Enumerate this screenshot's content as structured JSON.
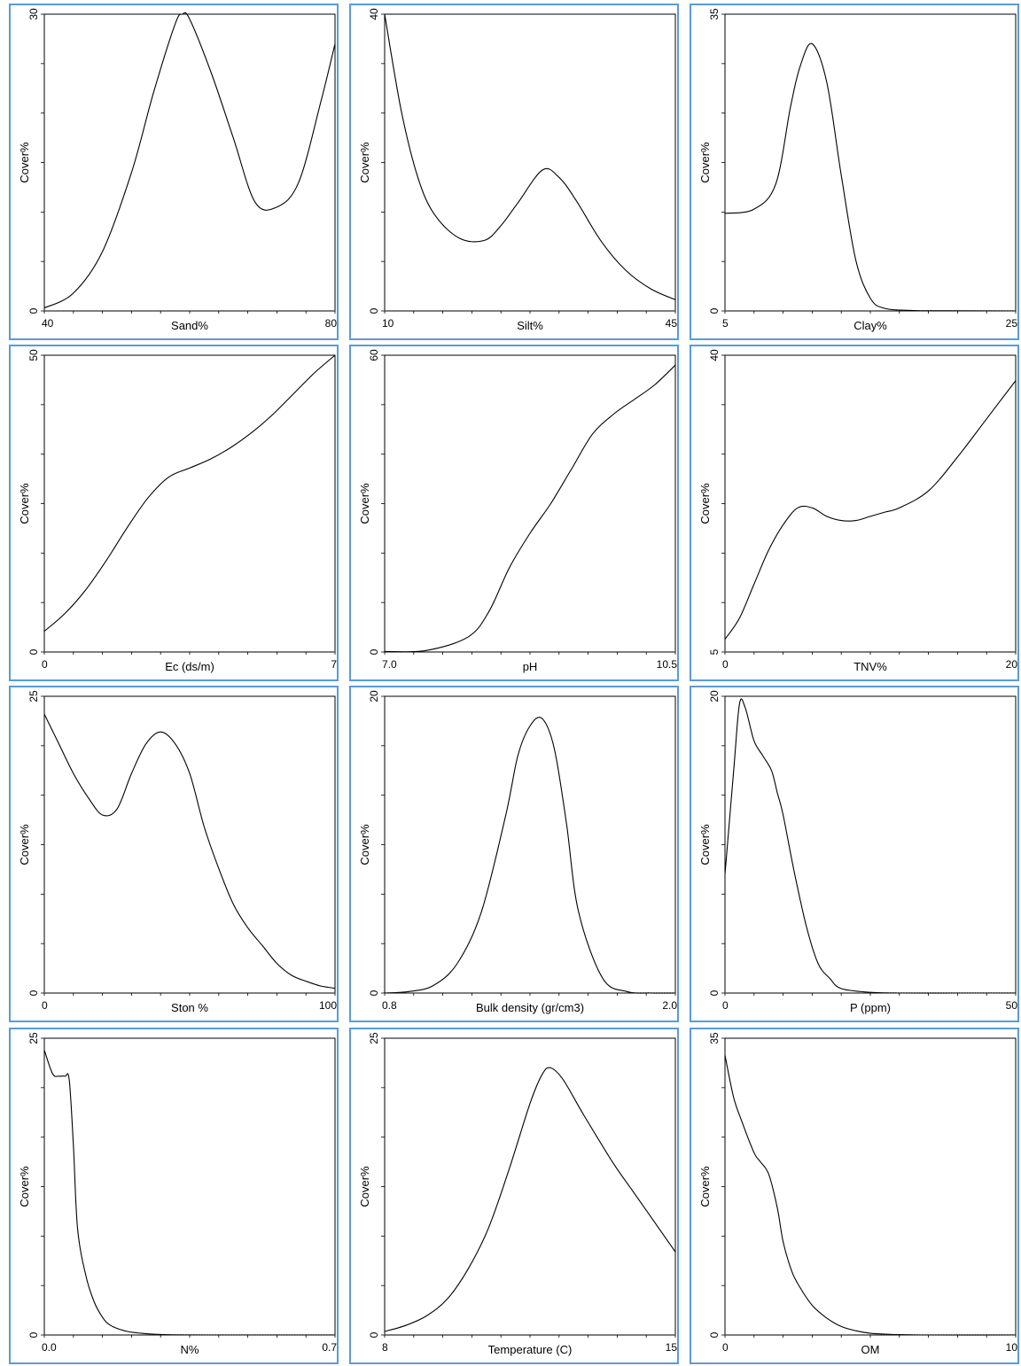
{
  "colors": {
    "panel_border": "#5b9bd5",
    "curve": "#000000",
    "baseline": "#777777"
  },
  "chart_data": [
    {
      "type": "line",
      "xlabel": "Sand%",
      "ylabel": "Cover%",
      "xlim": [
        40,
        80
      ],
      "ylim": [
        0,
        30
      ],
      "x_ticks": [
        40,
        80
      ],
      "y_ticks": [
        0,
        30
      ],
      "x": [
        40,
        44,
        48,
        52,
        55,
        58,
        59,
        60,
        63,
        66,
        69,
        72,
        75,
        78,
        80
      ],
      "y": [
        0.3,
        1.8,
        6,
        14,
        22,
        29,
        30,
        29.5,
        24,
        17.5,
        11,
        10.5,
        13,
        21,
        27
      ]
    },
    {
      "type": "line",
      "xlabel": "Silt%",
      "ylabel": "Cover%",
      "xlim": [
        10,
        45
      ],
      "ylim": [
        0,
        40
      ],
      "x_ticks": [
        10,
        45
      ],
      "y_ticks": [
        0,
        40
      ],
      "x": [
        10,
        12,
        14,
        16,
        19,
        22,
        24,
        26,
        29,
        31,
        33,
        36,
        39,
        42,
        45
      ],
      "y": [
        40,
        27,
        18,
        13,
        9.8,
        9.5,
        11.5,
        14.5,
        19,
        18,
        15,
        9.5,
        5.5,
        3,
        1.5
      ]
    },
    {
      "type": "line",
      "xlabel": "Clay%",
      "ylabel": "Cover%",
      "xlim": [
        5,
        25
      ],
      "ylim": [
        0,
        35
      ],
      "x_ticks": [
        5,
        25
      ],
      "y_ticks": [
        0,
        35
      ],
      "x": [
        5,
        7,
        8.5,
        9.5,
        10.2,
        11,
        12,
        13,
        14,
        15,
        16,
        18,
        20,
        25
      ],
      "y": [
        11.5,
        12,
        15,
        24,
        29,
        31.5,
        27,
        16,
        6,
        1.5,
        0.3,
        0.05,
        0.02,
        0
      ]
    },
    {
      "type": "line",
      "xlabel": "Ec (ds/m)",
      "ylabel": "Cover%",
      "xlim": [
        0,
        7
      ],
      "ylim": [
        0,
        50
      ],
      "x_ticks": [
        0,
        7
      ],
      "y_ticks": [
        0,
        50
      ],
      "x": [
        0,
        0.5,
        1,
        1.5,
        2,
        2.5,
        3,
        3.5,
        4,
        4.5,
        5,
        5.5,
        6,
        6.5,
        7
      ],
      "y": [
        3.5,
        6.5,
        10.5,
        15.5,
        21,
        26,
        29.5,
        31,
        32.5,
        34.5,
        37,
        40,
        43.5,
        47,
        50
      ]
    },
    {
      "type": "line",
      "xlabel": "pH",
      "ylabel": "Cover%",
      "xlim": [
        7,
        10.5
      ],
      "ylim": [
        0,
        60
      ],
      "x_ticks": [
        7,
        10.5
      ],
      "y_ticks": [
        0,
        60
      ],
      "x": [
        7,
        7.5,
        8,
        8.25,
        8.5,
        8.75,
        9,
        9.25,
        9.5,
        9.75,
        10,
        10.25,
        10.5
      ],
      "y": [
        0.1,
        0.3,
        3,
        8,
        17,
        24,
        30,
        37,
        44,
        48,
        51,
        54,
        58
      ]
    },
    {
      "type": "line",
      "xlabel": "TNV%",
      "ylabel": "Cover%",
      "xlim": [
        0,
        20
      ],
      "ylim": [
        5,
        40
      ],
      "x_ticks": [
        0,
        20
      ],
      "y_ticks": [
        5,
        40
      ],
      "x": [
        0,
        1,
        2,
        3,
        4,
        5,
        6,
        7,
        8,
        9,
        10,
        11,
        12,
        14,
        16,
        18,
        20
      ],
      "y": [
        6.5,
        9,
        13,
        17,
        20,
        22,
        22,
        21,
        20.5,
        20.5,
        21,
        21.5,
        22,
        24,
        28,
        32.5,
        37
      ]
    },
    {
      "type": "line",
      "xlabel": "Ston %",
      "ylabel": "Cover%",
      "xlim": [
        0,
        100
      ],
      "ylim": [
        0,
        25
      ],
      "x_ticks": [
        0,
        100
      ],
      "y_ticks": [
        0,
        25
      ],
      "x": [
        0,
        5,
        10,
        15,
        20,
        25,
        30,
        35,
        40,
        45,
        50,
        55,
        60,
        65,
        70,
        75,
        80,
        85,
        90,
        95,
        100
      ],
      "y": [
        23.5,
        21,
        18.5,
        16.5,
        15,
        15.5,
        18.5,
        21,
        22,
        21,
        18.5,
        14,
        10.5,
        7.5,
        5.5,
        4,
        2.5,
        1.5,
        1,
        0.6,
        0.4
      ]
    },
    {
      "type": "line",
      "xlabel": "Bulk density (gr/cm3)",
      "ylabel": "Cover%",
      "xlim": [
        0.8,
        2.0
      ],
      "ylim": [
        0,
        20
      ],
      "x_ticks": [
        0.8,
        2.0
      ],
      "y_ticks": [
        0,
        20
      ],
      "x": [
        0.8,
        0.9,
        1.0,
        1.1,
        1.2,
        1.3,
        1.35,
        1.4,
        1.45,
        1.5,
        1.55,
        1.6,
        1.7,
        1.8,
        1.9,
        2.0
      ],
      "y": [
        0,
        0.1,
        0.5,
        2,
        5.5,
        12,
        16,
        18,
        18.5,
        16.5,
        11.5,
        5.5,
        1,
        0.1,
        0,
        0
      ]
    },
    {
      "type": "line",
      "xlabel": "P (ppm)",
      "ylabel": "Cover%",
      "xlim": [
        0,
        50
      ],
      "ylim": [
        0,
        20
      ],
      "x_ticks": [
        0,
        50
      ],
      "y_ticks": [
        0,
        20
      ],
      "x": [
        0,
        1.5,
        2.5,
        3.5,
        5,
        6.5,
        8,
        9,
        10,
        12,
        14,
        16,
        18,
        20,
        25,
        30,
        40,
        50
      ],
      "y": [
        8,
        15,
        19.5,
        19.2,
        17,
        16,
        15,
        13.5,
        12,
        8,
        4.5,
        2,
        1,
        0.3,
        0.05,
        0,
        0,
        0
      ]
    },
    {
      "type": "line",
      "xlabel": "N%",
      "ylabel": "Cover%",
      "xlim": [
        0.0,
        0.7
      ],
      "ylim": [
        0,
        25
      ],
      "x_ticks": [
        0.0,
        0.7
      ],
      "y_ticks": [
        0,
        25
      ],
      "x": [
        0,
        0.02,
        0.035,
        0.05,
        0.06,
        0.07,
        0.08,
        0.1,
        0.12,
        0.14,
        0.16,
        0.2,
        0.25,
        0.3,
        0.4,
        0.5,
        0.6,
        0.7
      ],
      "y": [
        24,
        22,
        21.8,
        21.8,
        21.5,
        16,
        9,
        5,
        2.8,
        1.5,
        0.8,
        0.3,
        0.1,
        0.02,
        0,
        0,
        0,
        0
      ]
    },
    {
      "type": "line",
      "xlabel": "Temperature (C)",
      "ylabel": "Cover%",
      "xlim": [
        8,
        15
      ],
      "ylim": [
        0,
        25
      ],
      "x_ticks": [
        8,
        15
      ],
      "y_ticks": [
        0,
        25
      ],
      "x": [
        8,
        8.5,
        9,
        9.5,
        10,
        10.5,
        11,
        11.5,
        11.8,
        12,
        12.3,
        12.8,
        13.5,
        14,
        14.5,
        15
      ],
      "y": [
        0.3,
        0.8,
        1.6,
        3,
        5.5,
        9,
        14,
        19.5,
        22,
        22.5,
        21.5,
        18.5,
        14.5,
        12,
        9.5,
        7
      ]
    },
    {
      "type": "line",
      "xlabel": "OM",
      "ylabel": "Cover%",
      "xlim": [
        0,
        10
      ],
      "ylim": [
        0,
        35
      ],
      "x_ticks": [
        0,
        10
      ],
      "y_ticks": [
        0,
        35
      ],
      "x": [
        0,
        0.3,
        0.6,
        1,
        1.2,
        1.5,
        1.8,
        2,
        2.3,
        2.6,
        3,
        3.5,
        4,
        4.5,
        5,
        5.5,
        6,
        7,
        10
      ],
      "y": [
        33,
        28,
        25,
        21.5,
        20.5,
        19,
        15,
        11,
        7.5,
        5.5,
        3.5,
        2,
        1,
        0.5,
        0.2,
        0.1,
        0.05,
        0,
        0
      ]
    }
  ]
}
